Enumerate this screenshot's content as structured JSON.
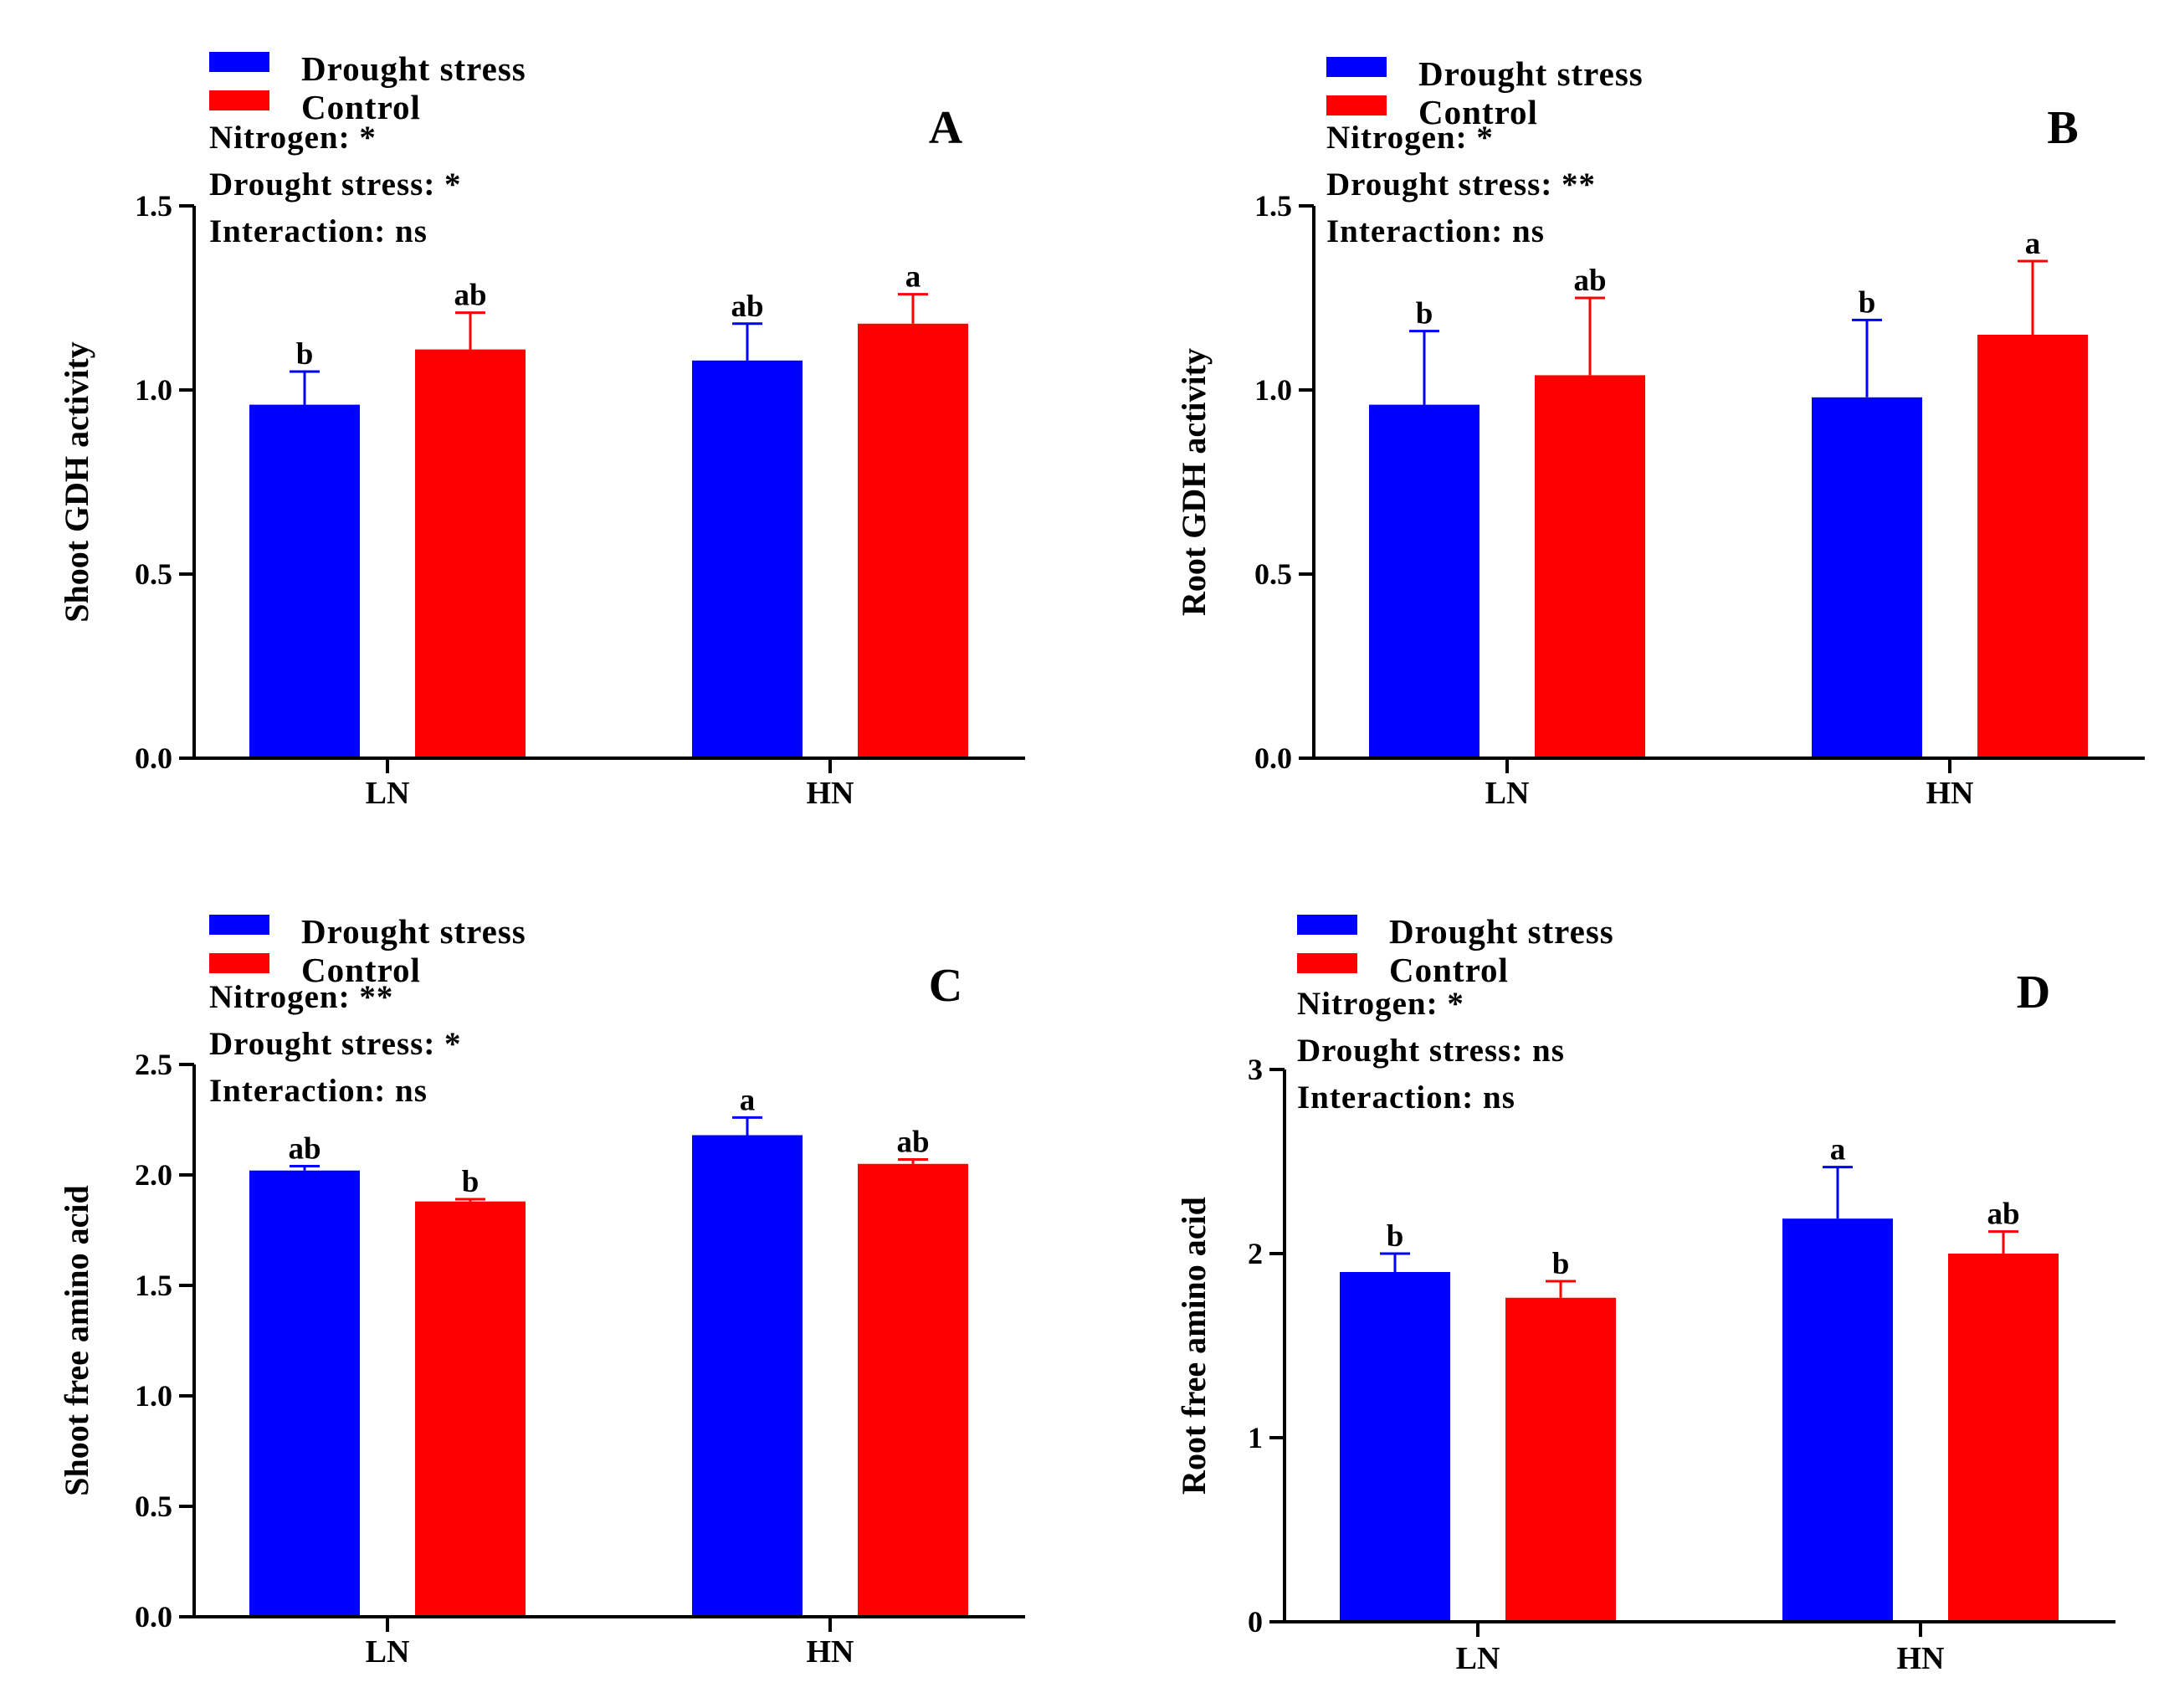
{
  "figure": {
    "legend": {
      "drought_label": "Drought stress",
      "control_label": "Control"
    },
    "colors": {
      "drought": "#0000ff",
      "control": "#ff0000",
      "axis": "#000000"
    }
  },
  "chart_data": [
    {
      "panel": "A",
      "type": "bar",
      "ylabel": "Shoot GDH activity",
      "ylim": [
        0,
        1.5
      ],
      "ticks": [
        "0.0",
        "0.5",
        "1.0",
        "1.5"
      ],
      "categories": [
        "LN",
        "HN"
      ],
      "legend": [
        "Drought stress",
        "Control"
      ],
      "stats": [
        "Nitrogen: *",
        "Drought stress: *",
        "Interaction: ns"
      ],
      "series": [
        {
          "name": "Drought stress",
          "values": [
            0.96,
            1.08
          ],
          "errors": [
            0.09,
            0.1
          ],
          "letters": [
            "b",
            "ab"
          ]
        },
        {
          "name": "Control",
          "values": [
            1.11,
            1.18
          ],
          "errors": [
            0.1,
            0.08
          ],
          "letters": [
            "ab",
            "a"
          ]
        }
      ]
    },
    {
      "panel": "B",
      "type": "bar",
      "ylabel": "Root GDH activity",
      "ylim": [
        0,
        1.5
      ],
      "ticks": [
        "0.0",
        "0.5",
        "1.0",
        "1.5"
      ],
      "categories": [
        "LN",
        "HN"
      ],
      "legend": [
        "Drought stress",
        "Control"
      ],
      "stats": [
        "Nitrogen: *",
        "Drought stress: **",
        "Interaction: ns"
      ],
      "series": [
        {
          "name": "Drought stress",
          "values": [
            0.96,
            0.98
          ],
          "errors": [
            0.2,
            0.21
          ],
          "letters": [
            "b",
            "b"
          ]
        },
        {
          "name": "Control",
          "values": [
            1.04,
            1.15
          ],
          "errors": [
            0.21,
            0.2
          ],
          "letters": [
            "ab",
            "a"
          ]
        }
      ]
    },
    {
      "panel": "C",
      "type": "bar",
      "ylabel": "Shoot free amino acid",
      "ylim": [
        0,
        2.5
      ],
      "ticks": [
        "0.0",
        "0.5",
        "1.0",
        "1.5",
        "2.0",
        "2.5"
      ],
      "categories": [
        "LN",
        "HN"
      ],
      "legend": [
        "Drought stress",
        "Control"
      ],
      "stats": [
        "Nitrogen: **",
        "Drought stress: *",
        "Interaction: ns"
      ],
      "series": [
        {
          "name": "Drought stress",
          "values": [
            2.02,
            2.18
          ],
          "errors": [
            0.02,
            0.08
          ],
          "letters": [
            "ab",
            "a"
          ]
        },
        {
          "name": "Control",
          "values": [
            1.88,
            2.05
          ],
          "errors": [
            0.01,
            0.02
          ],
          "letters": [
            "b",
            "ab"
          ]
        }
      ]
    },
    {
      "panel": "D",
      "type": "bar",
      "ylabel": "Root free amino acid",
      "ylim": [
        0,
        3
      ],
      "ticks": [
        "0",
        "1",
        "2",
        "3"
      ],
      "categories": [
        "LN",
        "HN"
      ],
      "legend": [
        "Drought stress",
        "Control"
      ],
      "stats": [
        "Nitrogen: *",
        "Drought stress: ns",
        "Interaction: ns"
      ],
      "series": [
        {
          "name": "Drought stress",
          "values": [
            1.9,
            2.19
          ],
          "errors": [
            0.1,
            0.28
          ],
          "letters": [
            "b",
            "a"
          ]
        },
        {
          "name": "Control",
          "values": [
            1.76,
            2.0
          ],
          "errors": [
            0.09,
            0.12
          ],
          "letters": [
            "b",
            "ab"
          ]
        }
      ]
    }
  ]
}
